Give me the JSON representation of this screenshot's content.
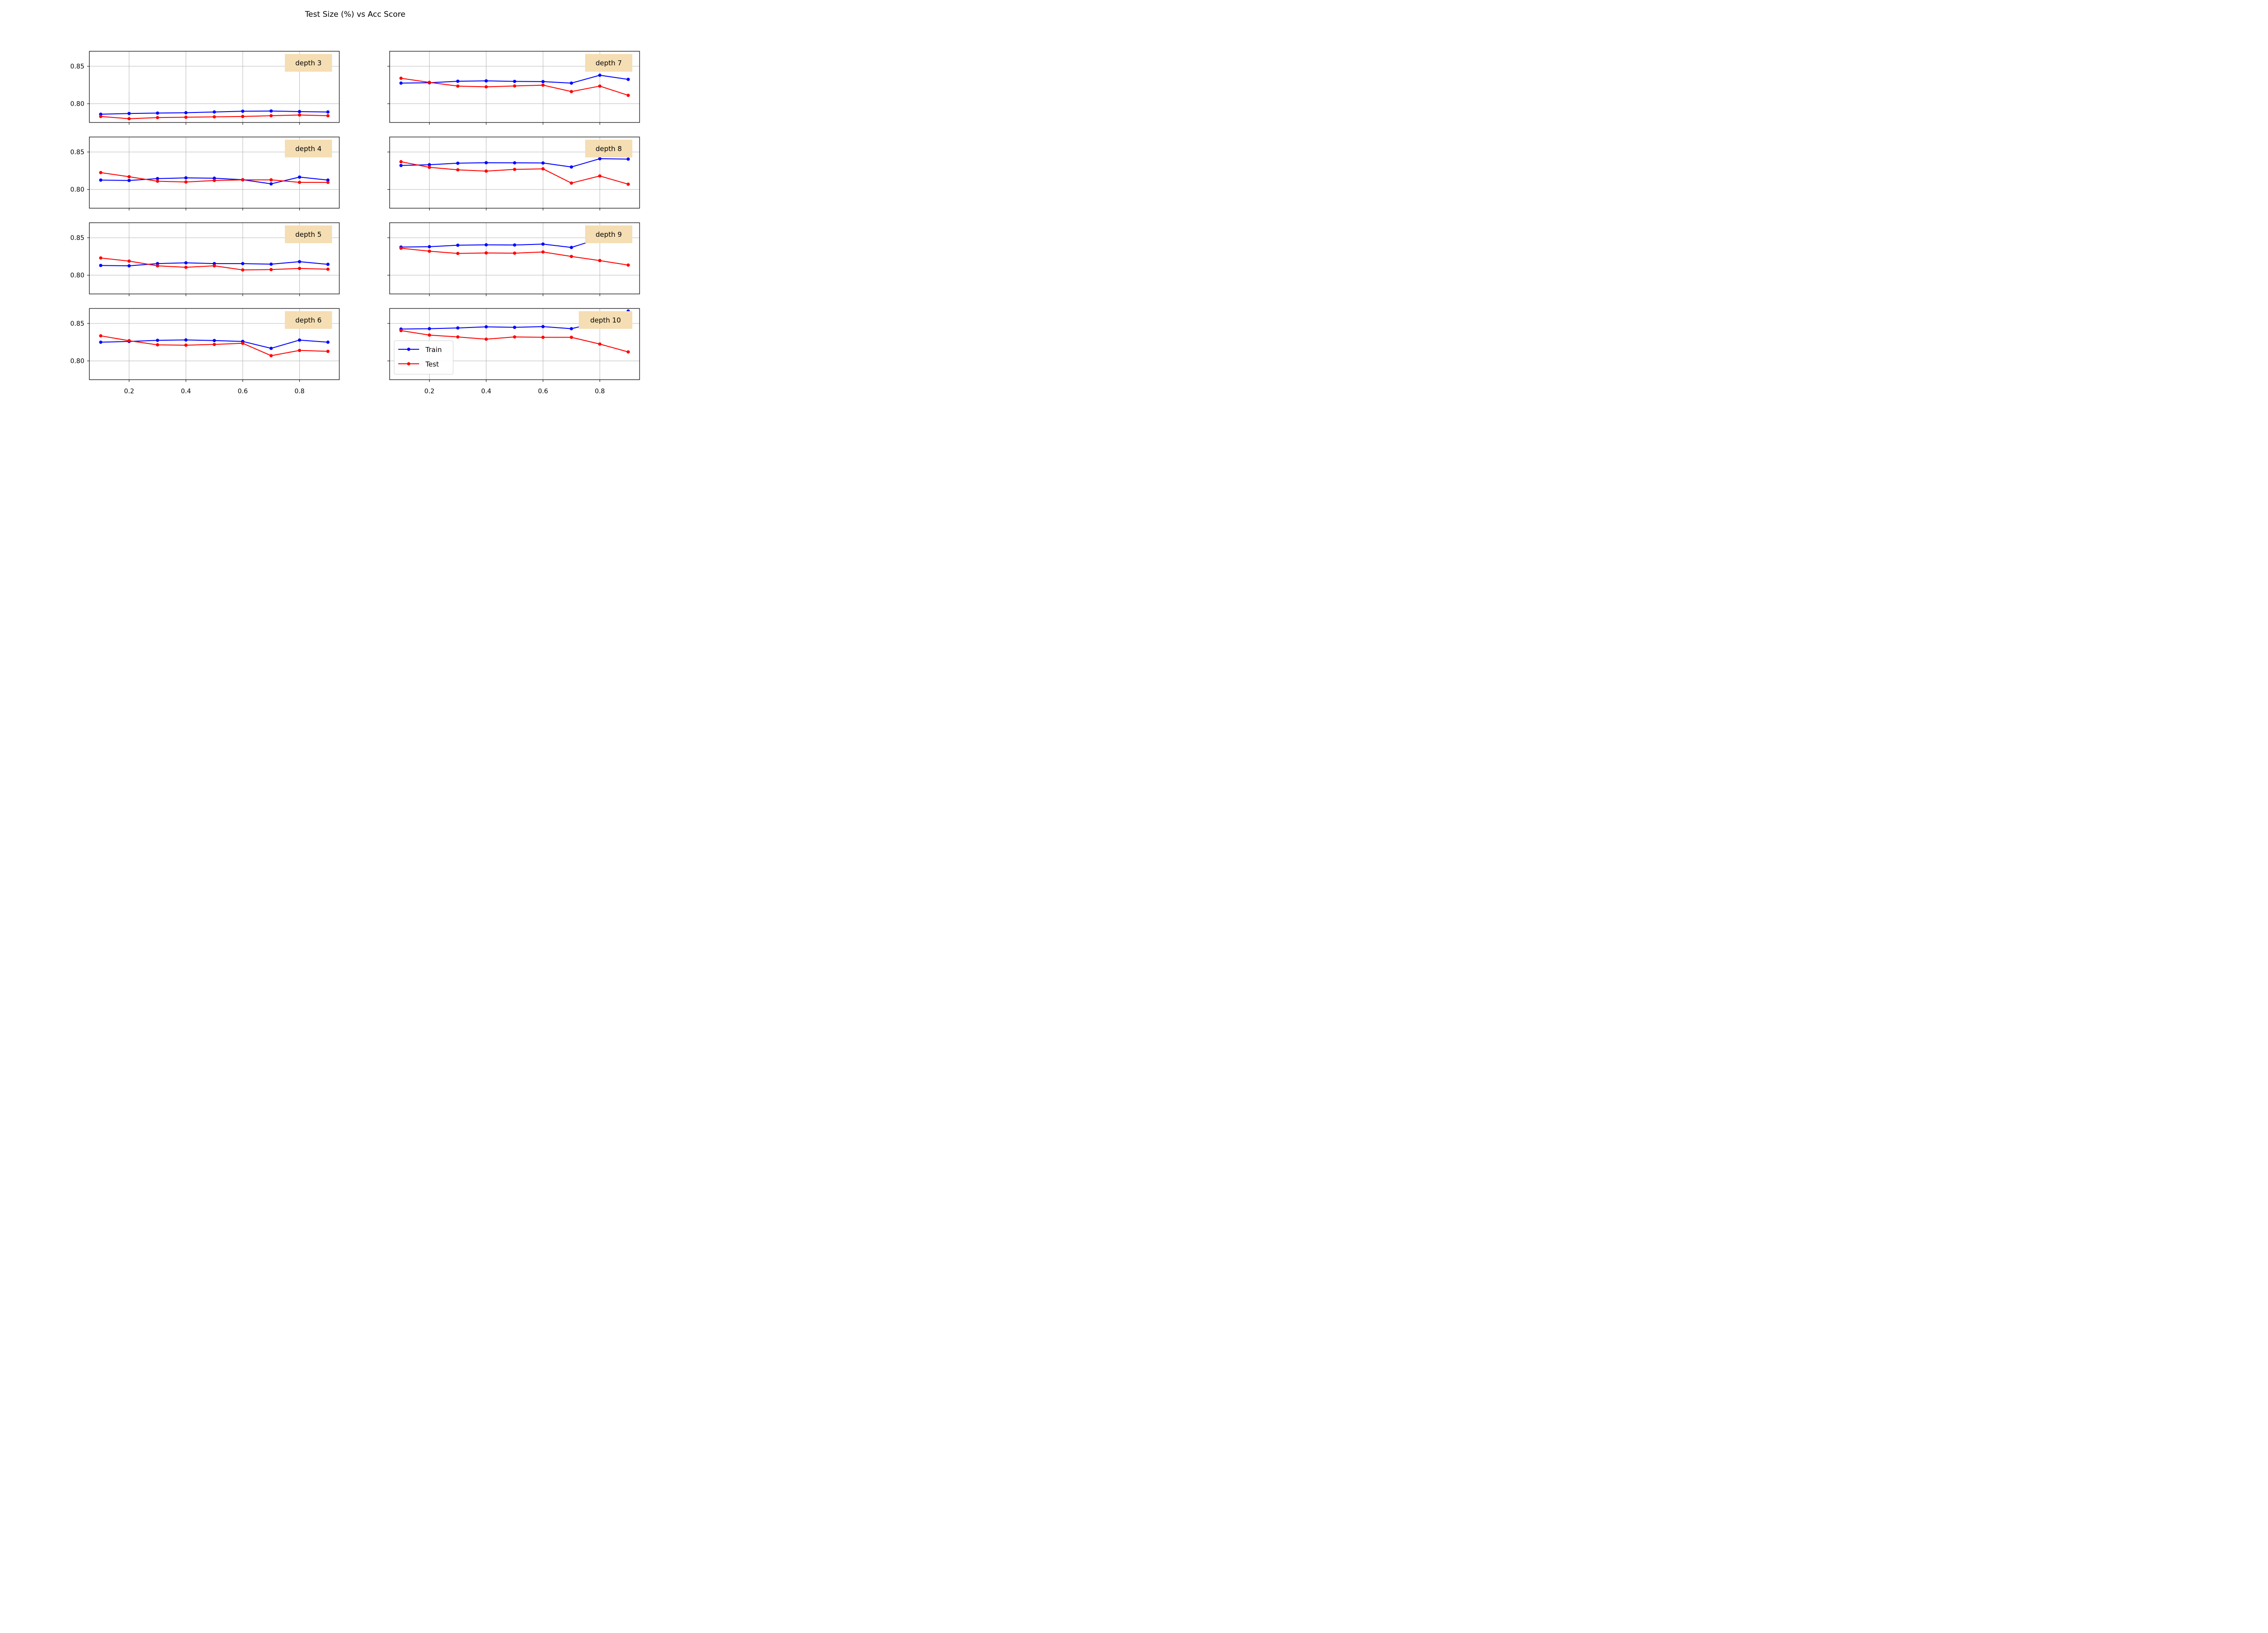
{
  "chart_data": {
    "type": "line",
    "title": "Test Size (%) vs Acc Score",
    "x": [
      0.1,
      0.2,
      0.3,
      0.4,
      0.5,
      0.6,
      0.7,
      0.8,
      0.9
    ],
    "xticks": [
      "0.2",
      "0.4",
      "0.6",
      "0.8"
    ],
    "xtick_values": [
      0.2,
      0.4,
      0.6,
      0.8
    ],
    "xlim": [
      0.06,
      0.94
    ],
    "yticks": [
      "0.80",
      "0.85"
    ],
    "ytick_values": [
      0.8,
      0.85
    ],
    "ylim": [
      0.775,
      0.87
    ],
    "grid": true,
    "legend": {
      "placement": "lower-left",
      "panel": "depth 10",
      "entries": [
        "Train",
        "Test"
      ]
    },
    "series_colors": {
      "Train": "#0000ff",
      "Test": "#ff0000"
    },
    "panels": [
      {
        "label": "depth 3",
        "column": "left",
        "row": 0,
        "series": [
          {
            "name": "Train",
            "values": [
              0.786,
              0.787,
              0.7875,
              0.788,
              0.789,
              0.79,
              0.7903,
              0.7895,
              0.789
            ]
          },
          {
            "name": "Test",
            "values": [
              0.783,
              0.78,
              0.7815,
              0.782,
              0.7825,
              0.783,
              0.784,
              0.785,
              0.784
            ]
          }
        ]
      },
      {
        "label": "depth 4",
        "column": "left",
        "row": 1,
        "series": [
          {
            "name": "Train",
            "values": [
              0.8125,
              0.812,
              0.8145,
              0.8155,
              0.815,
              0.813,
              0.8075,
              0.8165,
              0.8125
            ]
          },
          {
            "name": "Test",
            "values": [
              0.8225,
              0.817,
              0.811,
              0.81,
              0.812,
              0.8128,
              0.8128,
              0.8095,
              0.8095
            ]
          }
        ]
      },
      {
        "label": "depth 5",
        "column": "left",
        "row": 2,
        "series": [
          {
            "name": "Train",
            "values": [
              0.813,
              0.8125,
              0.8155,
              0.8165,
              0.8155,
              0.8155,
              0.8147,
              0.818,
              0.8145
            ]
          },
          {
            "name": "Test",
            "values": [
              0.823,
              0.8188,
              0.8125,
              0.8105,
              0.8125,
              0.807,
              0.8075,
              0.809,
              0.808
            ]
          }
        ]
      },
      {
        "label": "depth 6",
        "column": "left",
        "row": 3,
        "series": [
          {
            "name": "Train",
            "values": [
              0.825,
              0.826,
              0.8275,
              0.828,
              0.8272,
              0.826,
              0.8168,
              0.8278,
              0.825
            ]
          },
          {
            "name": "Test",
            "values": [
              0.8335,
              0.827,
              0.8215,
              0.821,
              0.822,
              0.8235,
              0.807,
              0.814,
              0.8128
            ]
          }
        ]
      },
      {
        "label": "depth 7",
        "column": "right",
        "row": 0,
        "series": [
          {
            "name": "Train",
            "values": [
              0.8275,
              0.828,
              0.83,
              0.8305,
              0.8298,
              0.8295,
              0.8275,
              0.838,
              0.8325
            ]
          },
          {
            "name": "Test",
            "values": [
              0.834,
              0.8285,
              0.8235,
              0.8225,
              0.8237,
              0.8248,
              0.8162,
              0.8235,
              0.8112
            ]
          }
        ]
      },
      {
        "label": "depth 8",
        "column": "right",
        "row": 1,
        "series": [
          {
            "name": "Train",
            "values": [
              0.832,
              0.833,
              0.835,
              0.8357,
              0.8355,
              0.8353,
              0.83,
              0.841,
              0.8405
            ]
          },
          {
            "name": "Test",
            "values": [
              0.837,
              0.8295,
              0.8262,
              0.8245,
              0.8268,
              0.8275,
              0.8085,
              0.818,
              0.807
            ]
          }
        ]
      },
      {
        "label": "depth 9",
        "column": "right",
        "row": 2,
        "series": [
          {
            "name": "Train",
            "values": [
              0.8375,
              0.838,
              0.84,
              0.8405,
              0.8403,
              0.8415,
              0.837,
              0.849,
              0.853
            ]
          },
          {
            "name": "Test",
            "values": [
              0.836,
              0.832,
              0.829,
              0.8297,
              0.8294,
              0.831,
              0.825,
              0.8195,
              0.8135
            ]
          }
        ]
      },
      {
        "label": "depth 10",
        "column": "right",
        "row": 3,
        "series": [
          {
            "name": "Train",
            "values": [
              0.8425,
              0.843,
              0.844,
              0.8455,
              0.8448,
              0.8458,
              0.843,
              0.852,
              0.8665
            ]
          },
          {
            "name": "Test",
            "values": [
              0.8405,
              0.8345,
              0.832,
              0.829,
              0.832,
              0.8315,
              0.8315,
              0.8225,
              0.812
            ]
          }
        ]
      }
    ]
  }
}
